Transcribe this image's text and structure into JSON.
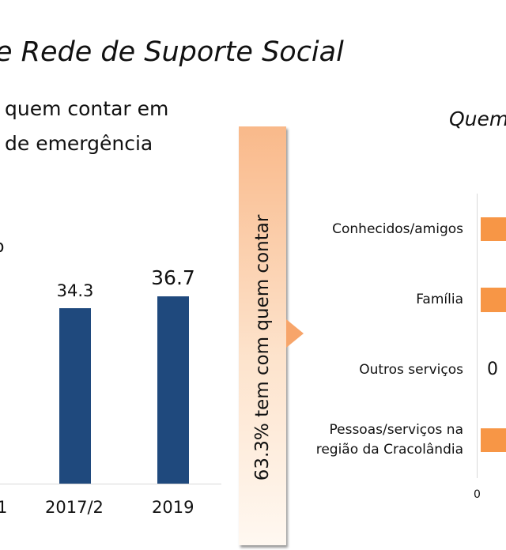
{
  "title": "e Rede de Suporte Social",
  "subtitle_line1": "quem contar em",
  "subtitle_line2": "de emergência",
  "right_title": "Quem",
  "callout": "63.3% tem com quem contar",
  "colors": {
    "left_bars": "#1f497d",
    "right_bars": "#f79646",
    "callout": "#f9b98a"
  },
  "chart_data": [
    {
      "type": "bar",
      "categories": [
        "1",
        "2017/2",
        "2019"
      ],
      "values": [
        null,
        34.3,
        36.7
      ],
      "value_labels": [
        "",
        "34.3",
        "36.7"
      ],
      "partial_label": "o"
    },
    {
      "type": "bar",
      "orientation": "horizontal",
      "categories": [
        "Conhecidos/amigos",
        "Família",
        "Outros serviços",
        "Pessoas/serviços na região da Cracolândia"
      ],
      "value_labels": [
        "",
        "",
        "0",
        ""
      ],
      "x_ticks": [
        "0"
      ]
    }
  ]
}
